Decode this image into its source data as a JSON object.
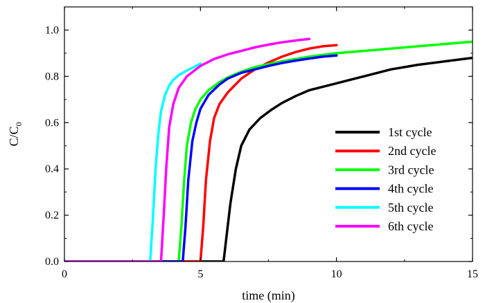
{
  "chart_data": {
    "type": "line",
    "title": "",
    "xlabel": "time (min)",
    "ylabel_main": "C/C",
    "ylabel_sub": "0",
    "xlim": [
      0,
      15
    ],
    "ylim": [
      0,
      1.1
    ],
    "xticks": [
      0,
      5,
      10,
      15
    ],
    "yticks": [
      0.0,
      0.2,
      0.4,
      0.6,
      0.8,
      1.0
    ],
    "xtick_labels": [
      "0",
      "5",
      "10",
      "15"
    ],
    "ytick_labels": [
      "0.0",
      "0.2",
      "0.4",
      "0.6",
      "0.8",
      "1.0"
    ],
    "grid": false,
    "legend_position": "lower-right",
    "series": [
      {
        "name": "1st cycle",
        "color": "#000000",
        "x": [
          0,
          5.85,
          5.95,
          6.1,
          6.3,
          6.5,
          6.8,
          7.2,
          7.6,
          8.0,
          8.5,
          9.0,
          9.5,
          10.0,
          11.0,
          12.0,
          13.0,
          14.0,
          15.0
        ],
        "y": [
          0.0,
          0.0,
          0.1,
          0.25,
          0.4,
          0.5,
          0.57,
          0.62,
          0.655,
          0.685,
          0.715,
          0.74,
          0.755,
          0.77,
          0.8,
          0.83,
          0.85,
          0.865,
          0.88
        ]
      },
      {
        "name": "2nd cycle",
        "color": "#ff0000",
        "x": [
          0,
          5.0,
          5.1,
          5.2,
          5.35,
          5.5,
          5.7,
          6.0,
          6.5,
          7.0,
          7.5,
          8.0,
          8.5,
          9.0,
          9.5,
          10.0
        ],
        "y": [
          0.0,
          0.0,
          0.15,
          0.35,
          0.52,
          0.62,
          0.68,
          0.73,
          0.79,
          0.83,
          0.86,
          0.885,
          0.905,
          0.92,
          0.93,
          0.935
        ]
      },
      {
        "name": "3rd cycle",
        "color": "#00ff00",
        "x": [
          0,
          4.2,
          4.3,
          4.4,
          4.5,
          4.65,
          4.8,
          5.0,
          5.3,
          5.7,
          6.0,
          6.5,
          7.0,
          8.0,
          9.0,
          10.0,
          11.0,
          12.0,
          13.0,
          14.0,
          15.0
        ],
        "y": [
          0.0,
          0.0,
          0.15,
          0.35,
          0.5,
          0.6,
          0.655,
          0.7,
          0.74,
          0.775,
          0.795,
          0.82,
          0.84,
          0.865,
          0.885,
          0.9,
          0.91,
          0.92,
          0.93,
          0.94,
          0.95
        ]
      },
      {
        "name": "4th cycle",
        "color": "#0000ff",
        "x": [
          0,
          4.35,
          4.45,
          4.55,
          4.7,
          4.85,
          5.0,
          5.3,
          5.7,
          6.0,
          6.5,
          7.0,
          7.5,
          8.0,
          8.5,
          9.0,
          9.5,
          10.0
        ],
        "y": [
          0.0,
          0.0,
          0.15,
          0.35,
          0.52,
          0.6,
          0.66,
          0.72,
          0.765,
          0.79,
          0.815,
          0.83,
          0.845,
          0.858,
          0.868,
          0.877,
          0.885,
          0.89
        ]
      },
      {
        "name": "5th cycle",
        "color": "#00ffff",
        "x": [
          0,
          3.15,
          3.25,
          3.35,
          3.45,
          3.55,
          3.7,
          3.85,
          4.0,
          4.2,
          4.5,
          5.0
        ],
        "y": [
          0.0,
          0.0,
          0.18,
          0.4,
          0.55,
          0.65,
          0.72,
          0.76,
          0.785,
          0.805,
          0.825,
          0.855
        ]
      },
      {
        "name": "6th cycle",
        "color": "#ff00ff",
        "x": [
          0,
          3.55,
          3.65,
          3.75,
          3.85,
          4.0,
          4.2,
          4.5,
          5.0,
          5.5,
          6.0,
          6.5,
          7.0,
          7.5,
          8.0,
          8.5,
          9.0
        ],
        "y": [
          0.0,
          0.0,
          0.2,
          0.42,
          0.58,
          0.68,
          0.75,
          0.8,
          0.845,
          0.875,
          0.895,
          0.91,
          0.925,
          0.937,
          0.947,
          0.955,
          0.962
        ]
      }
    ]
  }
}
